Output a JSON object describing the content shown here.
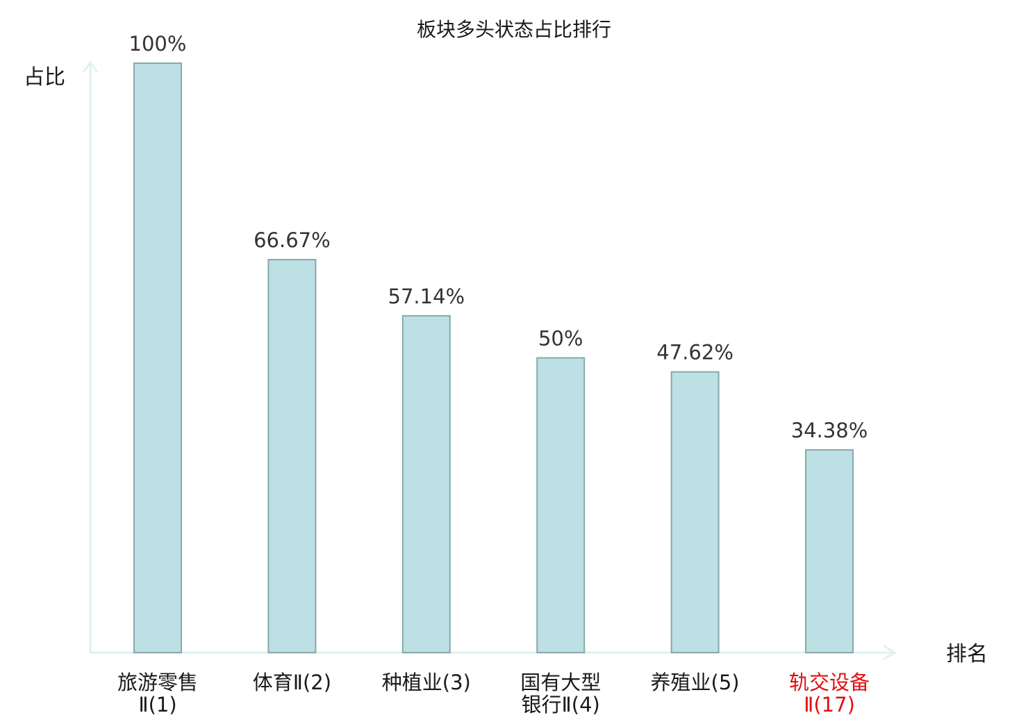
{
  "colors": {
    "bar_fill": "#bce0e3",
    "bar_stroke": "#86a8ab",
    "axis": "#dff2ef",
    "highlight": "#e01010",
    "text": "#1a1a1a"
  },
  "chart_data": {
    "type": "bar",
    "title": "板块多头状态占比排行",
    "ylabel": "占比",
    "xlabel": "排名",
    "ylim": [
      0,
      100
    ],
    "grid": false,
    "legend": "none",
    "categories": [
      {
        "line1": "旅游零售",
        "line2": "Ⅱ(1)",
        "highlight": false
      },
      {
        "line1": "体育Ⅱ(2)",
        "line2": "",
        "highlight": false
      },
      {
        "line1": "种植业(3)",
        "line2": "",
        "highlight": false
      },
      {
        "line1": "国有大型",
        "line2": "银行Ⅱ(4)",
        "highlight": false
      },
      {
        "line1": "养殖业(5)",
        "line2": "",
        "highlight": false
      },
      {
        "line1": "轨交设备",
        "line2": "Ⅱ(17)",
        "highlight": true
      }
    ],
    "values": [
      100,
      66.67,
      57.14,
      50,
      47.62,
      34.38
    ],
    "value_labels": [
      "100%",
      "66.67%",
      "57.14%",
      "50%",
      "47.62%",
      "34.38%"
    ]
  }
}
